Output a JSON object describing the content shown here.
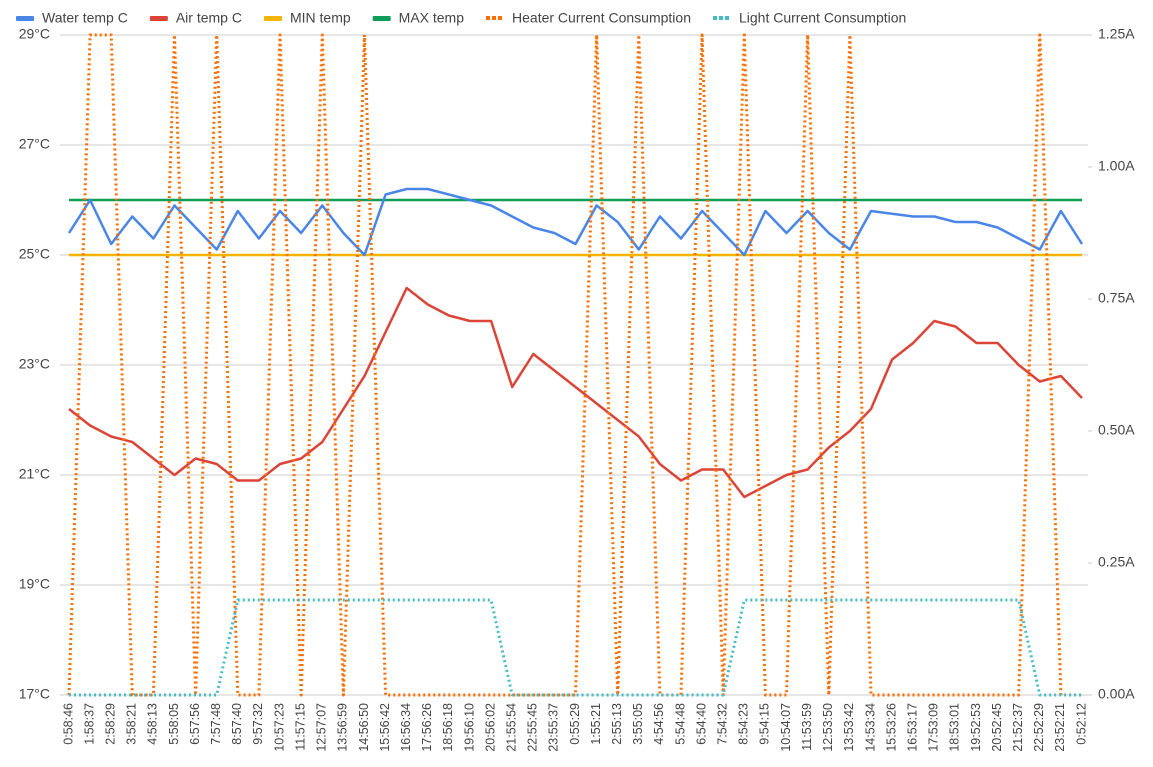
{
  "chart_data": {
    "type": "line",
    "legend": "top",
    "grid": true,
    "categories": [
      "0:58:46",
      "1:58:37",
      "2:58:29",
      "3:58:21",
      "4:58:13",
      "5:58:05",
      "6:57:56",
      "7:57:48",
      "8:57:40",
      "9:57:32",
      "10:57:23",
      "11:57:15",
      "12:57:07",
      "13:56:59",
      "14:56:50",
      "15:56:42",
      "16:56:34",
      "17:56:26",
      "18:56:18",
      "19:56:10",
      "20:56:02",
      "21:55:54",
      "22:55:45",
      "23:55:37",
      "0:55:29",
      "1:55:21",
      "2:55:13",
      "3:55:05",
      "4:54:56",
      "5:54:48",
      "6:54:40",
      "7:54:32",
      "8:54:23",
      "9:54:15",
      "10:54:07",
      "11:53:59",
      "12:53:50",
      "13:53:42",
      "14:53:34",
      "15:53:26",
      "16:53:17",
      "17:53:09",
      "18:53:01",
      "19:52:53",
      "20:52:45",
      "21:52:37",
      "22:52:29",
      "23:52:21",
      "0:52:12"
    ],
    "ylim": [
      17,
      29
    ],
    "yticks": [
      {
        "value": 17,
        "label": "17°C"
      },
      {
        "value": 19,
        "label": "19°C"
      },
      {
        "value": 21,
        "label": "21°C"
      },
      {
        "value": 23,
        "label": "23°C"
      },
      {
        "value": 25,
        "label": "25°C"
      },
      {
        "value": 27,
        "label": "27°C"
      },
      {
        "value": 29,
        "label": "29°C"
      }
    ],
    "y2lim": [
      0,
      1.25
    ],
    "y2ticks": [
      {
        "value": 0,
        "label": "0.00A"
      },
      {
        "value": 0.25,
        "label": "0.25A"
      },
      {
        "value": 0.5,
        "label": "0.50A"
      },
      {
        "value": 0.75,
        "label": "0.75A"
      },
      {
        "value": 1,
        "label": "1.00A"
      },
      {
        "value": 1.25,
        "label": "1.25A"
      }
    ],
    "series": [
      {
        "name": "Water temp C",
        "color": "#4a86e8",
        "line_style": "solid",
        "values": [
          25.4,
          26.0,
          25.2,
          25.7,
          25.3,
          25.9,
          25.5,
          25.1,
          25.8,
          25.3,
          25.8,
          25.4,
          25.9,
          25.4,
          25.0,
          26.1,
          26.2,
          26.2,
          26.1,
          26.0,
          25.9,
          25.7,
          25.5,
          25.4,
          25.2,
          25.9,
          25.6,
          25.1,
          25.7,
          25.3,
          25.8,
          25.4,
          25.0,
          25.8,
          25.4,
          25.8,
          25.4,
          25.1,
          25.8,
          25.75,
          25.7,
          25.7,
          25.6,
          25.6,
          25.5,
          25.3,
          25.1,
          25.8,
          25.2
        ]
      },
      {
        "name": "Air temp C",
        "color": "#db4437",
        "line_style": "solid",
        "values": [
          22.2,
          21.9,
          21.7,
          21.6,
          21.3,
          21.0,
          21.3,
          21.2,
          20.9,
          20.9,
          21.2,
          21.3,
          21.6,
          22.2,
          22.8,
          23.6,
          24.4,
          24.1,
          23.9,
          23.8,
          23.8,
          22.6,
          23.2,
          22.9,
          22.6,
          22.3,
          22.0,
          21.7,
          21.2,
          20.9,
          21.1,
          21.1,
          20.6,
          20.8,
          21.0,
          21.1,
          21.5,
          21.8,
          22.2,
          23.1,
          23.4,
          23.8,
          23.7,
          23.4,
          23.4,
          23.0,
          22.7,
          22.8,
          22.4
        ]
      },
      {
        "name": "MIN temp",
        "color": "#f4b400",
        "line_style": "solid",
        "values": [
          25,
          25,
          25,
          25,
          25,
          25,
          25,
          25,
          25,
          25,
          25,
          25,
          25,
          25,
          25,
          25,
          25,
          25,
          25,
          25,
          25,
          25,
          25,
          25,
          25,
          25,
          25,
          25,
          25,
          25,
          25,
          25,
          25,
          25,
          25,
          25,
          25,
          25,
          25,
          25,
          25,
          25,
          25,
          25,
          25,
          25,
          25,
          25,
          25
        ]
      },
      {
        "name": "MAX temp",
        "color": "#0f9d58",
        "line_style": "solid",
        "values": [
          26,
          26,
          26,
          26,
          26,
          26,
          26,
          26,
          26,
          26,
          26,
          26,
          26,
          26,
          26,
          26,
          26,
          26,
          26,
          26,
          26,
          26,
          26,
          26,
          26,
          26,
          26,
          26,
          26,
          26,
          26,
          26,
          26,
          26,
          26,
          26,
          26,
          26,
          26,
          26,
          26,
          26,
          26,
          26,
          26,
          26,
          26,
          26,
          26
        ]
      },
      {
        "name": "Heater Current Consumption",
        "color": "#ff6d00",
        "line_style": "dotted",
        "axis": "y2",
        "values": [
          0,
          1.25,
          1.25,
          0,
          0,
          1.25,
          0,
          1.25,
          0,
          0,
          1.25,
          0,
          1.25,
          0,
          1.25,
          0,
          0,
          0,
          0,
          0,
          0,
          0,
          0,
          0,
          0,
          1.25,
          0,
          1.25,
          0,
          0,
          1.25,
          0,
          1.25,
          0,
          0,
          1.25,
          0,
          1.25,
          0,
          0,
          0,
          0,
          0,
          0,
          0,
          0,
          1.25,
          0,
          0
        ]
      },
      {
        "name": "Light Current Consumption",
        "color": "#46bdc6",
        "line_style": "dotted",
        "axis": "y2",
        "values": [
          0,
          0,
          0,
          0,
          0,
          0,
          0,
          0,
          0.18,
          0.18,
          0.18,
          0.18,
          0.18,
          0.18,
          0.18,
          0.18,
          0.18,
          0.18,
          0.18,
          0.18,
          0.18,
          0,
          0,
          0,
          0,
          0,
          0,
          0,
          0,
          0,
          0,
          0,
          0.18,
          0.18,
          0.18,
          0.18,
          0.18,
          0.18,
          0.18,
          0.18,
          0.18,
          0.18,
          0.18,
          0.18,
          0.18,
          0.18,
          0,
          0,
          0
        ]
      }
    ]
  }
}
